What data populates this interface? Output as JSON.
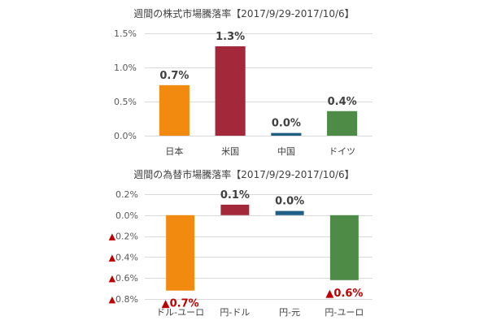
{
  "chart_data": [
    {
      "type": "bar",
      "title": "週間の株式市場騰落率【2017/9/29-2017/10/6】",
      "categories": [
        "日本",
        "米国",
        "中国",
        "ドイツ"
      ],
      "values": [
        0.74,
        1.31,
        0.04,
        0.36
      ],
      "data_labels": [
        "0.7%",
        "1.3%",
        "0.0%",
        "0.4%"
      ],
      "colors": [
        "#F28A10",
        "#A3283A",
        "#1F5F86",
        "#4E8B46"
      ],
      "ylim": [
        0,
        1.5
      ],
      "yticks": [
        0,
        0.5,
        1.0,
        1.5
      ],
      "ytick_labels": [
        "0.0%",
        "0.5%",
        "1.0%",
        "1.5%"
      ],
      "grid": true,
      "label_color": "#404040",
      "negative_label_color": "#C00000"
    },
    {
      "type": "bar",
      "title": "週間の為替市場騰落率【2017/9/29-2017/10/6】",
      "categories": [
        "ドル-ユーロ",
        "円-ドル",
        "円-元",
        "円-ユーロ"
      ],
      "values": [
        -0.72,
        0.1,
        0.04,
        -0.62
      ],
      "data_labels": [
        "▲0.7%",
        "0.1%",
        "0.0%",
        "▲0.6%"
      ],
      "colors": [
        "#F28A10",
        "#A3283A",
        "#1F5F86",
        "#4E8B46"
      ],
      "ylim": [
        -0.8,
        0.2
      ],
      "yticks": [
        0.2,
        0.0,
        -0.2,
        -0.4,
        -0.6,
        -0.8
      ],
      "ytick_labels": [
        "0.2%",
        "0.0%",
        "▲0.2%",
        "▲0.4%",
        "▲0.6%",
        "▲0.8%"
      ],
      "grid": true,
      "label_color": "#404040",
      "negative_label_color": "#C00000"
    }
  ]
}
